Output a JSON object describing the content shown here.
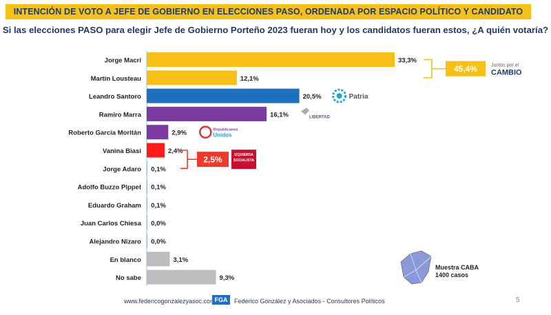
{
  "header": {
    "banner": "INTENCIÓN DE VOTO A JEFE DE GOBIERNO EN ELECCIONES PASO, ORDENADA POR ESPACIO POLÍTICO Y CANDIDATO",
    "question": "Si las elecciones PASO para elegir Jefe de Gobierno Porteño 2023 fueran hoy y los candidatos fueran estos, ¿A quién votaría?"
  },
  "chart_data": {
    "type": "bar",
    "orientation": "horizontal",
    "categories": [
      "Jorge Macri",
      "Martín Lousteau",
      "Leandro Santoro",
      "Ramiro Marra",
      "Roberto García Moritán",
      "Vanina Biasi",
      "Jorge Adaro",
      "Adolfo Buzzo Pippet",
      "Eduardo Graham",
      "Juan Carlos Chiesa",
      "Alejandro Nizaro",
      "En blanco",
      "No sabe"
    ],
    "values": [
      33.3,
      12.1,
      20.5,
      16.1,
      2.9,
      2.4,
      0.1,
      0.1,
      0.1,
      0.0,
      0.0,
      3.1,
      9.3
    ],
    "value_labels": [
      "33,3%",
      "12,1%",
      "20,5%",
      "16,1%",
      "2,9%",
      "2,4%",
      "0,1%",
      "0,1%",
      "0,1%",
      "0,0%",
      "0,0%",
      "3,1%",
      "9,3%"
    ],
    "colors": [
      "#f6c017",
      "#f6c017",
      "#1f6fc0",
      "#7b3aa0",
      "#7b3aa0",
      "#ff1a1a",
      "#9cc0e0",
      "#9cc0e0",
      "#9cc0e0",
      "#9cc0e0",
      "#9cc0e0",
      "#bdbdbd",
      "#bdbdbd"
    ],
    "xlim": [
      0,
      33.3
    ],
    "grid": false,
    "groups": [
      {
        "label": "45,4%",
        "from": 0,
        "to": 1,
        "color": "#f6c017",
        "party_top": "Juntos por el",
        "party_main": "CAMBIO"
      },
      {
        "label": "2,5%",
        "from": 5,
        "to": 6,
        "color": "#ee3a2a",
        "party_top": "IZQUIERDA",
        "party_main": "SOCIALISTA"
      }
    ],
    "party_tags": [
      {
        "row": 2,
        "text": "Patria",
        "color": "#27a0dc"
      },
      {
        "row": 3,
        "text": "LIBERTAD",
        "color": "#6b3f8f"
      },
      {
        "row": 4,
        "text_top": "Republicanos",
        "text_main": "Unidos",
        "color": "#7b3aa0"
      }
    ]
  },
  "sample": {
    "line1": "Muestra CABA",
    "line2": "1400 casos"
  },
  "footer": {
    "url": "www.federicogonzalezyasoc.com",
    "logo": "FGA",
    "org": "Federico González y Asociados - Consultores Políticos",
    "page": "5"
  }
}
